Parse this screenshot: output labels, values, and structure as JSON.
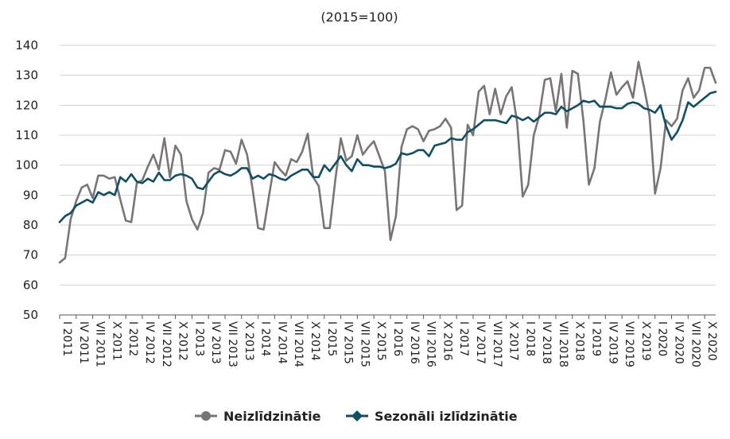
{
  "chart_data": {
    "type": "line",
    "title": "",
    "subtitle": "(2015=100)",
    "xlabel": "",
    "ylabel": "",
    "ylim": [
      50,
      140
    ],
    "yticks": [
      50,
      60,
      70,
      80,
      90,
      100,
      110,
      120,
      130,
      140
    ],
    "grid": "horizontal",
    "legend_position": "bottom",
    "x_tick_labels": [
      "I 2011",
      "IV 2011",
      "VII 2011",
      "X 2011",
      "I 2012",
      "IV 2012",
      "VII 2012",
      "X 2012",
      "I 2013",
      "IV 2013",
      "VII 2013",
      "X 2013",
      "I 2014",
      "IV 2014",
      "VII 2014",
      "X 2014",
      "I 2015",
      "IV 2015",
      "VII 2015",
      "X 2015",
      "I 2016",
      "IV 2016",
      "VII 2016",
      "X 2016",
      "I 2017",
      "IV 2017",
      "VII 2017",
      "X 2017",
      "I 2018",
      "IV 2018",
      "VII 2018",
      "X 2018",
      "I 2019",
      "IV 2019",
      "VII 2019",
      "X 2019",
      "I 2020",
      "IV 2020",
      "VII 2020",
      "X 2020"
    ],
    "x_start": "2011-01",
    "series": [
      {
        "name": "Neizlīdzinātie",
        "color": "#7a7574",
        "values": [
          67.5,
          69,
          82,
          88,
          92.5,
          93.5,
          89,
          96.5,
          96.5,
          95.5,
          96,
          88.5,
          81.5,
          81,
          94,
          95,
          99.5,
          103.5,
          98.5,
          109,
          96,
          106.5,
          103.5,
          88,
          82,
          78.5,
          84,
          97.5,
          99,
          98.5,
          105,
          104.5,
          100.5,
          108.5,
          103.5,
          92,
          79,
          78.5,
          90,
          101,
          98.5,
          96.5,
          102,
          101,
          104.5,
          110.5,
          96,
          93,
          79,
          79,
          95,
          109,
          101.5,
          103,
          110,
          103.5,
          106,
          108,
          103,
          98,
          75,
          83,
          106,
          112,
          113,
          112,
          108,
          111.5,
          112,
          113,
          115.5,
          112.5,
          85,
          86.5,
          113.5,
          110,
          124.5,
          126.5,
          117,
          125.5,
          117,
          123,
          126,
          114,
          89.5,
          93.5,
          110,
          116.5,
          128.5,
          129,
          118,
          130.5,
          112.5,
          131.5,
          130.5,
          115,
          93.5,
          99,
          114.5,
          122,
          131,
          123.5,
          126,
          128,
          122.5,
          134.5,
          126,
          116.5,
          90.5,
          99,
          115,
          113,
          115.5,
          125,
          129,
          122.5,
          125,
          132.5,
          132.5,
          127.5
        ]
      },
      {
        "name": "Sezonāli izlīdzinātie",
        "color": "#0f4f66",
        "values": [
          81,
          83,
          84,
          86.5,
          87.5,
          88.5,
          87.5,
          91,
          90,
          91,
          90,
          96,
          94.5,
          97,
          94.5,
          94,
          95.5,
          94.5,
          97.5,
          95,
          95,
          96.5,
          97,
          96.5,
          95.5,
          92.5,
          92,
          94.5,
          97,
          98,
          97,
          96.5,
          97.5,
          99,
          99,
          95.5,
          96.5,
          95.5,
          97,
          96.5,
          95.5,
          95,
          96.5,
          97.5,
          98.5,
          98.5,
          96,
          96,
          100,
          98,
          100.5,
          103,
          100,
          98,
          102,
          100,
          100,
          99.5,
          99.5,
          99,
          99.5,
          100.5,
          104,
          103.5,
          104,
          105,
          105,
          103,
          106.5,
          107,
          107.5,
          109,
          108.5,
          108.5,
          111,
          112,
          113.5,
          115,
          115,
          115,
          114.5,
          114,
          116.5,
          116,
          115,
          116,
          114.5,
          116,
          117.5,
          117.5,
          117,
          119.5,
          118,
          119,
          120,
          121.5,
          121,
          121.5,
          119.5,
          119.5,
          119.5,
          119,
          119,
          120.5,
          121,
          120.5,
          119,
          118.5,
          117.5,
          120,
          113,
          108.5,
          111,
          115,
          121,
          119.5,
          121,
          122.5,
          124,
          124.5
        ]
      }
    ]
  },
  "legend": {
    "items": [
      {
        "label": "Neizlīdzinātie",
        "color": "#7a7574"
      },
      {
        "label": "Sezonāli izlīdzinātie",
        "color": "#0f4f66"
      }
    ]
  }
}
